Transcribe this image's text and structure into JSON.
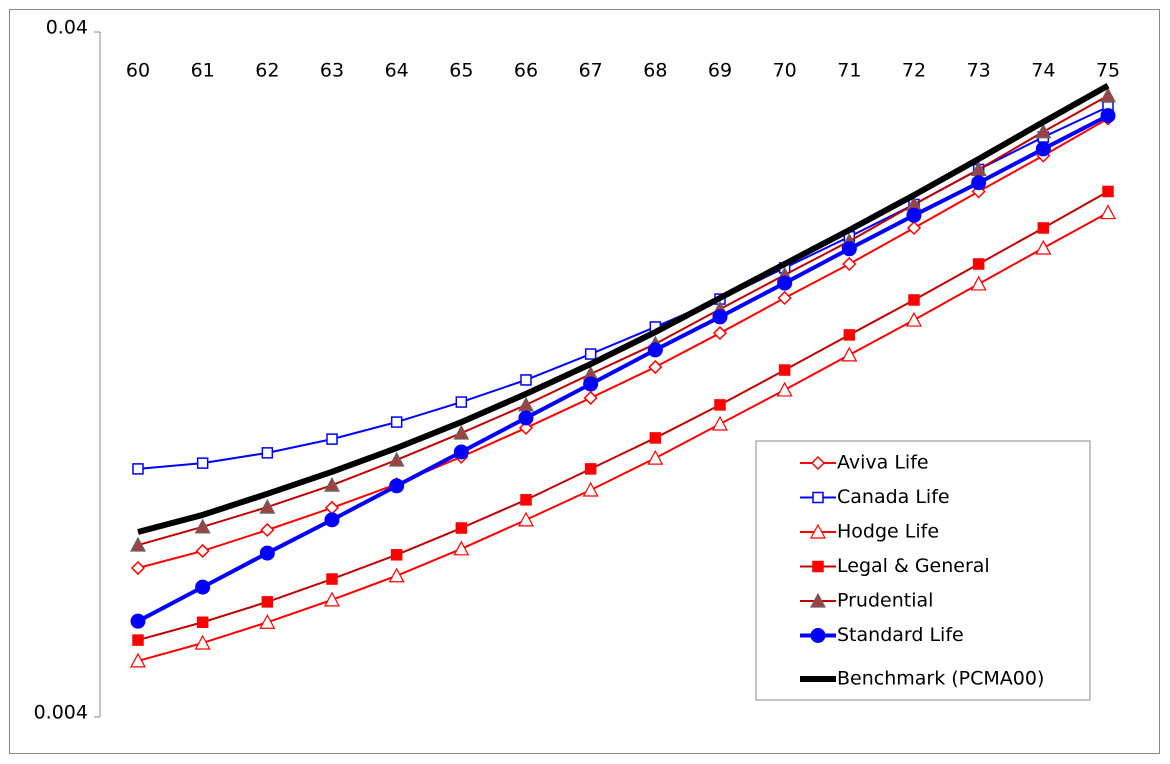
{
  "chart_data": {
    "type": "line",
    "yscale": "log",
    "categories": [
      "60",
      "61",
      "62",
      "63",
      "64",
      "65",
      "66",
      "67",
      "68",
      "69",
      "70",
      "71",
      "72",
      "73",
      "74",
      "75"
    ],
    "ylim": [
      0.004,
      0.04
    ],
    "yticks": [
      0.004,
      0.04
    ],
    "grid": false,
    "legend": "lower-right",
    "series": [
      {
        "name": "Aviva Life",
        "color": "#ff0000",
        "marker": "diamond-open",
        "width": 2,
        "values": [
          0.0066,
          0.00699,
          0.0075,
          0.00808,
          0.00875,
          0.00959,
          0.01057,
          0.01169,
          0.01297,
          0.01454,
          0.01636,
          0.01834,
          0.0207,
          0.0234,
          0.0264,
          0.0299
        ]
      },
      {
        "name": "Canada Life",
        "color": "#0000ff",
        "marker": "square-open",
        "width": 2,
        "values": [
          0.00921,
          0.00939,
          0.00972,
          0.01018,
          0.01078,
          0.01153,
          0.01242,
          0.01355,
          0.01484,
          0.0163,
          0.0181,
          0.0201,
          0.0224,
          0.0252,
          0.0281,
          0.0311
        ]
      },
      {
        "name": "Hodge Life",
        "color": "#ff0000",
        "marker": "triangle-open",
        "width": 2,
        "values": [
          0.00483,
          0.00513,
          0.0055,
          0.00593,
          0.00643,
          0.00704,
          0.00776,
          0.00858,
          0.00955,
          0.01071,
          0.01201,
          0.01351,
          0.01519,
          0.01715,
          0.01935,
          0.0218
        ]
      },
      {
        "name": "Legal & General",
        "color": "#c00000",
        "marker": "square",
        "markerColor": "#ff0000",
        "width": 2,
        "values": [
          0.00518,
          0.0055,
          0.00589,
          0.00636,
          0.0069,
          0.00755,
          0.0083,
          0.00921,
          0.01022,
          0.01142,
          0.01284,
          0.01445,
          0.01625,
          0.01834,
          0.0207,
          0.0234
        ]
      },
      {
        "name": "Prudential",
        "color": "#c00000",
        "marker": "triangle",
        "markerColor": "#a04040",
        "width": 2,
        "values": [
          0.00713,
          0.00758,
          0.0081,
          0.00872,
          0.00949,
          0.01039,
          0.01142,
          0.01267,
          0.01402,
          0.01576,
          0.01768,
          0.0198,
          0.0224,
          0.0252,
          0.0286,
          0.0323
        ]
      },
      {
        "name": "Standard Life",
        "color": "#0000ff",
        "marker": "circle",
        "width": 4,
        "values": [
          0.00552,
          0.00619,
          0.00694,
          0.00776,
          0.0087,
          0.00975,
          0.01093,
          0.01225,
          0.01374,
          0.01535,
          0.0172,
          0.0193,
          0.0216,
          0.0241,
          0.027,
          0.0302
        ]
      },
      {
        "name": "Benchmark (PCMA00)",
        "color": "#000000",
        "marker": "none",
        "width": 6,
        "values": [
          0.00745,
          0.00789,
          0.00847,
          0.00912,
          0.00988,
          0.01078,
          0.01185,
          0.0131,
          0.01459,
          0.01636,
          0.01834,
          0.02056,
          0.02312,
          0.0261,
          0.02956,
          0.0334
        ]
      }
    ]
  }
}
